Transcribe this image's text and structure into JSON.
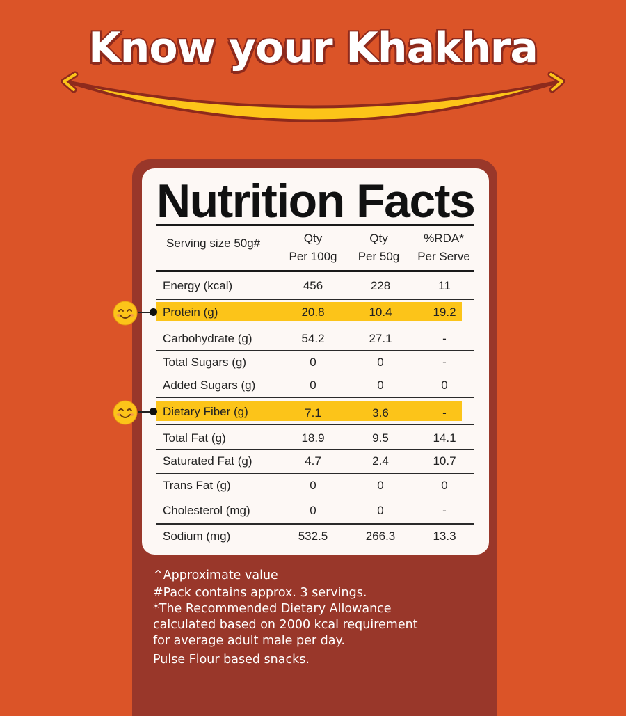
{
  "headline": "Know your Khakhra",
  "label_title": "Nutrition Facts",
  "header": {
    "serving": "Serving size 50g#",
    "col1_line1": "Qty",
    "col1_line2": "Per 100g",
    "col2_line1": "Qty",
    "col2_line2": "Per 50g",
    "col3_line1": "%RDA*",
    "col3_line2": "Per Serve"
  },
  "rows": [
    {
      "name": "Energy (kcal)",
      "per100": "456",
      "per50": "228",
      "rda": "11",
      "highlight": false
    },
    {
      "name": "Protein (g)",
      "per100": "20.8",
      "per50": "10.4",
      "rda": "19.2",
      "highlight": true
    },
    {
      "name": "Carbohydrate (g)",
      "per100": "54.2",
      "per50": "27.1",
      "rda": "-",
      "highlight": false
    },
    {
      "name": "Total Sugars (g)",
      "per100": "0",
      "per50": "0",
      "rda": "-",
      "highlight": false
    },
    {
      "name": "Added Sugars (g)",
      "per100": "0",
      "per50": "0",
      "rda": "0",
      "highlight": false
    },
    {
      "name": "Dietary Fiber (g)",
      "per100": "7.1",
      "per50": "3.6",
      "rda": "-",
      "highlight": true
    },
    {
      "name": "Total Fat (g)",
      "per100": "18.9",
      "per50": "9.5",
      "rda": "14.1",
      "highlight": false
    },
    {
      "name": "Saturated Fat (g)",
      "per100": "4.7",
      "per50": "2.4",
      "rda": "10.7",
      "highlight": false
    },
    {
      "name": "Trans Fat (g)",
      "per100": "0",
      "per50": "0",
      "rda": "0",
      "highlight": false
    },
    {
      "name": "Cholesterol (mg)",
      "per100": "0",
      "per50": "0",
      "rda": "-",
      "highlight": false
    },
    {
      "name": "Sodium (mg)",
      "per100": "532.5",
      "per50": "266.3",
      "rda": "13.3",
      "highlight": false
    }
  ],
  "footnotes": {
    "line1": "^Approximate value",
    "line2": "#Pack contains approx. 3 servings.",
    "line3": "*The Recommended Dietary Allowance",
    "line4": "calculated based on 2000 kcal requirement",
    "line5": "for average adult male per day.",
    "line6": "Pulse Flour based snacks."
  },
  "colors": {
    "background": "#DB5428",
    "panel": "#99372A",
    "card": "#FDF8F5",
    "highlight": "#FCC419",
    "smile_arc": "#FCC419"
  },
  "icons": {
    "highlight_marker": "smiling-face-icon",
    "arc": "smile-arc-icon"
  }
}
